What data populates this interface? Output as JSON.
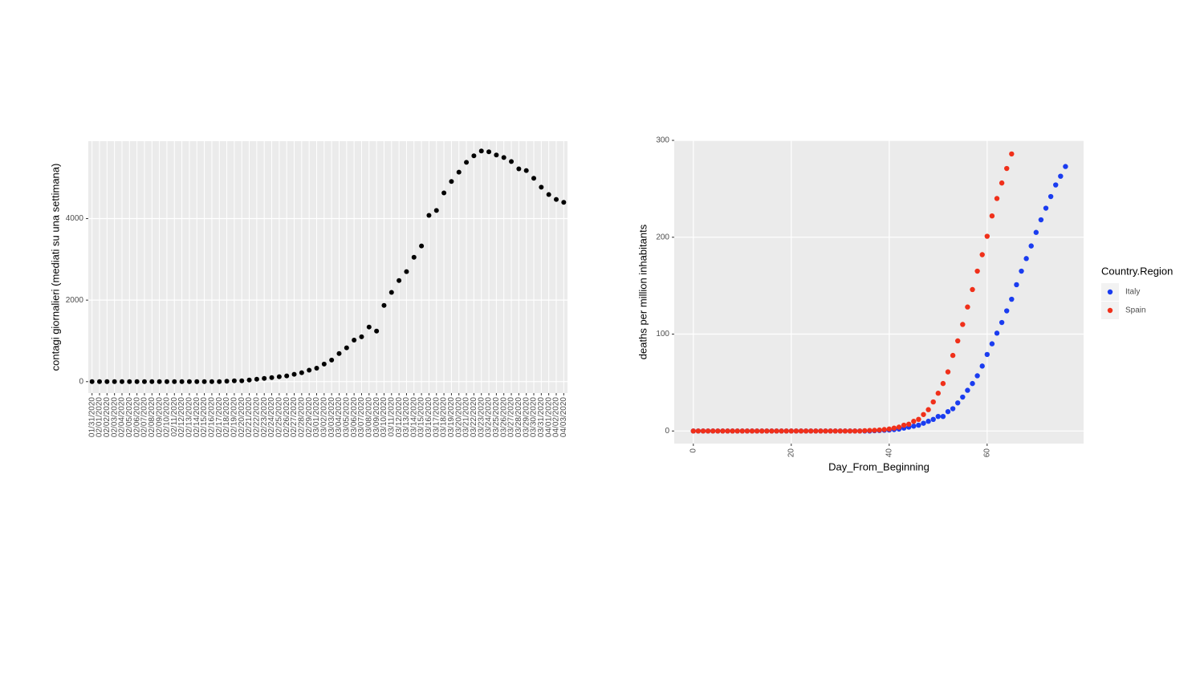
{
  "chart_data": [
    {
      "type": "scatter",
      "ylabel": "contagi giornalieri (mediati su una settimana)",
      "categories": [
        "01/31/2020",
        "02/01/2020",
        "02/02/2020",
        "02/03/2020",
        "02/04/2020",
        "02/05/2020",
        "02/06/2020",
        "02/07/2020",
        "02/08/2020",
        "02/09/2020",
        "02/10/2020",
        "02/11/2020",
        "02/12/2020",
        "02/13/2020",
        "02/14/2020",
        "02/15/2020",
        "02/16/2020",
        "02/17/2020",
        "02/18/2020",
        "02/19/2020",
        "02/20/2020",
        "02/21/2020",
        "02/22/2020",
        "02/23/2020",
        "02/24/2020",
        "02/25/2020",
        "02/26/2020",
        "02/27/2020",
        "02/28/2020",
        "02/29/2020",
        "03/01/2020",
        "03/02/2020",
        "03/03/2020",
        "03/04/2020",
        "03/05/2020",
        "03/06/2020",
        "03/07/2020",
        "03/08/2020",
        "03/09/2020",
        "03/10/2020",
        "03/11/2020",
        "03/12/2020",
        "03/13/2020",
        "03/14/2020",
        "03/15/2020",
        "03/16/2020",
        "03/17/2020",
        "03/18/2020",
        "03/19/2020",
        "03/20/2020",
        "03/21/2020",
        "03/22/2020",
        "03/23/2020",
        "03/24/2020",
        "03/25/2020",
        "03/26/2020",
        "03/27/2020",
        "03/28/2020",
        "03/29/2020",
        "03/30/2020",
        "03/31/2020",
        "04/01/2020",
        "04/02/2020",
        "04/03/2020"
      ],
      "values": [
        0,
        0,
        0,
        0,
        0,
        0,
        0,
        0,
        0,
        0,
        0,
        0,
        0,
        0,
        0,
        0,
        0,
        0,
        10,
        20,
        20,
        40,
        60,
        80,
        100,
        120,
        140,
        180,
        220,
        280,
        330,
        430,
        530,
        690,
        830,
        1020,
        1100,
        1340,
        1240,
        1870,
        2190,
        2480,
        2700,
        3050,
        3330,
        4080,
        4200,
        4630,
        4910,
        5140,
        5380,
        5540,
        5660,
        5640,
        5560,
        5500,
        5400,
        5220,
        5180,
        4990,
        4770,
        4590,
        4470,
        4400
      ],
      "color": "#000000",
      "ylim": [
        -280,
        5900
      ],
      "yticks": [
        0,
        2000,
        4000
      ],
      "grid": true
    },
    {
      "type": "scatter",
      "xlabel": "Day_From_Beginning",
      "ylabel": "deaths per million inhabitants",
      "legend_title": "Country.Region",
      "legend": "right",
      "series": [
        {
          "name": "Italy",
          "color": "#1a3cf0",
          "x": [
            0,
            1,
            2,
            3,
            4,
            5,
            6,
            7,
            8,
            9,
            10,
            11,
            12,
            13,
            14,
            15,
            16,
            17,
            18,
            19,
            20,
            21,
            22,
            23,
            24,
            25,
            26,
            27,
            28,
            29,
            30,
            31,
            32,
            33,
            34,
            35,
            36,
            37,
            38,
            39,
            40,
            41,
            42,
            43,
            44,
            45,
            46,
            47,
            48,
            49,
            50,
            51,
            52,
            53,
            54,
            55,
            56,
            57,
            58,
            59,
            60,
            61,
            62,
            63,
            64,
            65,
            66,
            67,
            68,
            69,
            70,
            71,
            72,
            73,
            74,
            75,
            76
          ],
          "values": [
            0,
            0,
            0,
            0,
            0,
            0,
            0,
            0,
            0,
            0,
            0,
            0,
            0,
            0,
            0,
            0,
            0,
            0,
            0,
            0,
            0,
            0,
            0,
            0,
            0,
            0,
            0,
            0,
            0,
            0,
            0,
            0,
            0,
            0,
            0,
            0,
            0,
            0.3,
            0.5,
            0.8,
            1,
            1.5,
            2,
            3,
            4,
            5,
            6,
            8,
            10,
            12,
            15,
            15,
            20,
            23,
            29,
            35,
            42,
            49,
            57,
            67,
            79,
            90,
            101,
            112,
            124,
            136,
            151,
            165,
            178,
            191,
            205,
            218,
            230,
            242,
            254,
            263,
            273
          ]
        },
        {
          "name": "Spain",
          "color": "#f0301a",
          "x": [
            0,
            1,
            2,
            3,
            4,
            5,
            6,
            7,
            8,
            9,
            10,
            11,
            12,
            13,
            14,
            15,
            16,
            17,
            18,
            19,
            20,
            21,
            22,
            23,
            24,
            25,
            26,
            27,
            28,
            29,
            30,
            31,
            32,
            33,
            34,
            35,
            36,
            37,
            38,
            39,
            40,
            41,
            42,
            43,
            44,
            45,
            46,
            47,
            48,
            49,
            50,
            51,
            52,
            53,
            54,
            55,
            56,
            57,
            58,
            59,
            60,
            61,
            62,
            63,
            64,
            65
          ],
          "values": [
            0,
            0,
            0,
            0,
            0,
            0,
            0,
            0,
            0,
            0,
            0,
            0,
            0,
            0,
            0,
            0,
            0,
            0,
            0,
            0,
            0,
            0,
            0,
            0,
            0,
            0,
            0,
            0,
            0,
            0,
            0,
            0,
            0,
            0,
            0,
            0.3,
            0.5,
            0.7,
            1,
            1.5,
            2,
            3,
            4,
            6,
            7,
            10,
            12,
            17,
            22,
            30,
            39,
            49,
            61,
            78,
            93,
            110,
            128,
            146,
            165,
            182,
            201,
            222,
            240,
            256,
            271,
            286
          ]
        }
      ],
      "xlim": [
        -3.9,
        79.7
      ],
      "xticks": [
        0,
        20,
        40,
        60
      ],
      "ylim": [
        -13,
        300
      ],
      "yticks": [
        0,
        100,
        200,
        300
      ],
      "grid": true
    }
  ]
}
